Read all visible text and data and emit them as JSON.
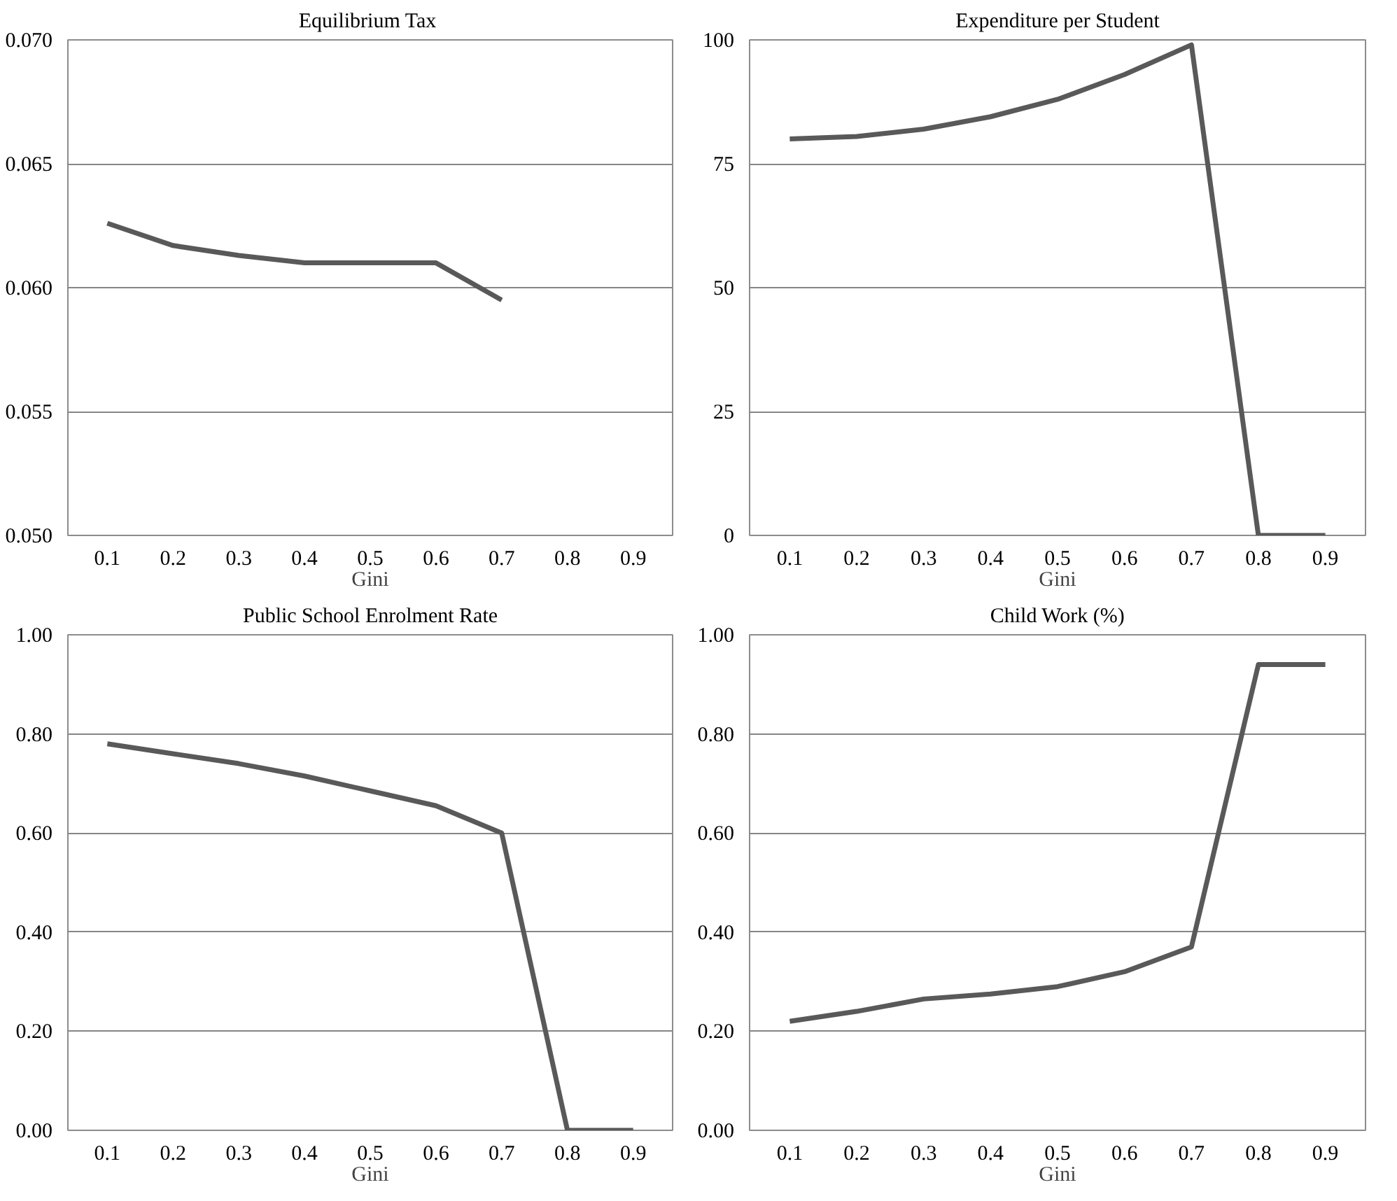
{
  "chart_data": [
    {
      "type": "line",
      "title": "Equilibrium  Tax",
      "xlabel": "Gini",
      "categories": [
        "0.1",
        "0.2",
        "0.3",
        "0.4",
        "0.5",
        "0.6",
        "0.7",
        "0.8",
        "0.9"
      ],
      "series": [
        {
          "color": "#595959",
          "values": [
            0.0626,
            0.0617,
            0.0613,
            0.061,
            0.061,
            0.061,
            0.0595,
            null,
            null
          ]
        }
      ],
      "ylim": [
        0.05,
        0.07
      ],
      "yticks": [
        {
          "value": 0.05,
          "label": "0.050"
        },
        {
          "value": 0.055,
          "label": "0.055"
        },
        {
          "value": 0.06,
          "label": "0.060"
        },
        {
          "value": 0.065,
          "label": "0.065"
        },
        {
          "value": 0.07,
          "label": "0.070"
        }
      ],
      "grid": "y",
      "marker": "none",
      "line_style": "solid"
    },
    {
      "type": "line",
      "title": "Expenditure per Student",
      "xlabel": "Gini",
      "categories": [
        "0.1",
        "0.2",
        "0.3",
        "0.4",
        "0.5",
        "0.6",
        "0.7",
        "0.8",
        "0.9"
      ],
      "series": [
        {
          "color": "#595959",
          "values": [
            80,
            80.5,
            82,
            84.5,
            88,
            93,
            99,
            0,
            0
          ]
        }
      ],
      "ylim": [
        0,
        100
      ],
      "yticks": [
        0,
        25,
        50,
        75,
        100
      ],
      "grid": "y",
      "marker": "none",
      "line_style": "solid"
    },
    {
      "type": "line",
      "title": "Public School Enrolment Rate",
      "xlabel": "Gini",
      "categories": [
        "0.1",
        "0.2",
        "0.3",
        "0.4",
        "0.5",
        "0.6",
        "0.7",
        "0.8",
        "0.9"
      ],
      "series": [
        {
          "color": "#595959",
          "values": [
            0.78,
            0.76,
            0.74,
            0.715,
            0.685,
            0.655,
            0.6,
            0,
            0
          ]
        }
      ],
      "ylim": [
        0,
        1
      ],
      "yticks": [
        {
          "value": 0,
          "label": "0.00"
        },
        {
          "value": 0.2,
          "label": "0.20"
        },
        {
          "value": 0.4,
          "label": "0.40"
        },
        {
          "value": 0.6,
          "label": "0.60"
        },
        {
          "value": 0.8,
          "label": "0.80"
        },
        {
          "value": 1,
          "label": "1.00"
        }
      ],
      "grid": "y",
      "marker": "none",
      "line_style": "solid"
    },
    {
      "type": "line",
      "title": "Child Work (%)",
      "xlabel": "Gini",
      "categories": [
        "0.1",
        "0.2",
        "0.3",
        "0.4",
        "0.5",
        "0.6",
        "0.7",
        "0.8",
        "0.9"
      ],
      "series": [
        {
          "color": "#595959",
          "values": [
            0.22,
            0.24,
            0.265,
            0.275,
            0.29,
            0.32,
            0.37,
            0.94,
            0.94
          ]
        }
      ],
      "ylim": [
        0,
        1
      ],
      "yticks": [
        {
          "value": 0,
          "label": "0.00"
        },
        {
          "value": 0.2,
          "label": "0.20"
        },
        {
          "value": 0.4,
          "label": "0.40"
        },
        {
          "value": 0.6,
          "label": "0.60"
        },
        {
          "value": 0.8,
          "label": "0.80"
        },
        {
          "value": 1,
          "label": "1.00"
        }
      ],
      "grid": "y",
      "marker": "none",
      "line_style": "solid"
    }
  ]
}
